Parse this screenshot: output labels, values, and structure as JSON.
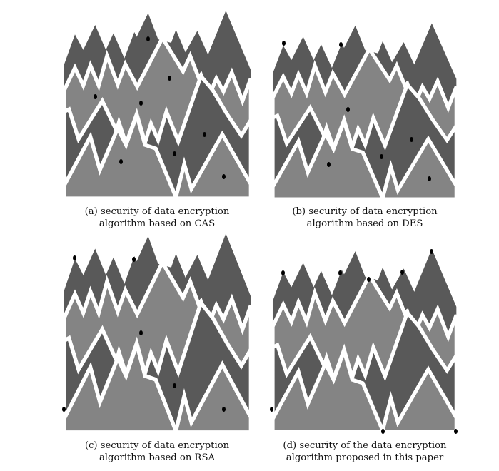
{
  "figure": {
    "colors": {
      "dark": "#595959",
      "light": "#848484",
      "separator": "#ffffff",
      "dot": "#000000"
    },
    "subfigures": [
      {
        "id": "a",
        "caption_line1": "(a) security of data encryption",
        "caption_line2": "algorithm based on CAS"
      },
      {
        "id": "b",
        "caption_line1": "(b) security of data encryption",
        "caption_line2": "algorithm based on DES"
      },
      {
        "id": "c",
        "caption_line1": "(c) security of data encryption",
        "caption_line2": "algorithm based on RSA"
      },
      {
        "id": "d",
        "caption_line1": "(d) security of the data encryption",
        "caption_line2": "algorithm proposed in this paper"
      }
    ]
  }
}
